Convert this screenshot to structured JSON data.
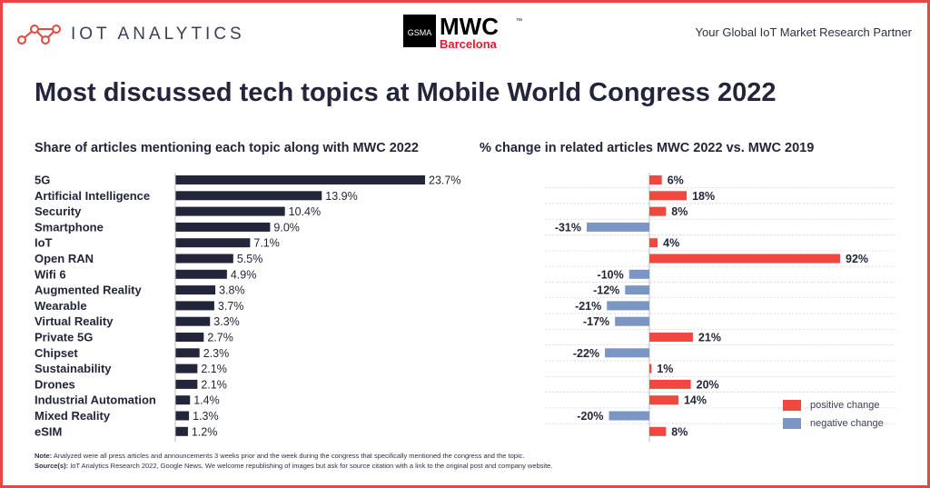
{
  "header": {
    "brand": "IOT ANALYTICS",
    "event_logo": {
      "wordmark": "MWC",
      "org": "GSMA",
      "city": "Barcelona",
      "tm": "™"
    },
    "tagline": "Your Global IoT Market Research Partner"
  },
  "title": "Most discussed tech topics at Mobile World Congress 2022",
  "colors": {
    "frame": "#e8473f",
    "share_bar": "#23263a",
    "positive": "#f0473f",
    "negative": "#7b96c2",
    "text": "#23263a"
  },
  "chart_data": [
    {
      "type": "bar",
      "orientation": "horizontal",
      "title": "Share of articles mentioning each topic along with MWC 2022",
      "categories": [
        "5G",
        "Artificial Intelligence",
        "Security",
        "Smartphone",
        "IoT",
        "Open RAN",
        "Wifi 6",
        "Augmented Reality",
        "Wearable",
        "Virtual Reality",
        "Private 5G",
        "Chipset",
        "Sustainability",
        "Drones",
        "Industrial Automation",
        "Mixed Reality",
        "eSIM"
      ],
      "values": [
        23.7,
        13.9,
        10.4,
        9.0,
        7.1,
        5.5,
        4.9,
        3.8,
        3.7,
        3.3,
        2.7,
        2.3,
        2.1,
        2.1,
        1.4,
        1.3,
        1.2
      ],
      "labels": [
        "23.7%",
        "13.9%",
        "10.4%",
        "9.0%",
        "7.1%",
        "5.5%",
        "4.9%",
        "3.8%",
        "3.7%",
        "3.3%",
        "2.7%",
        "2.3%",
        "2.1%",
        "2.1%",
        "1.4%",
        "1.3%",
        "1.2%"
      ],
      "unit": "%"
    },
    {
      "type": "bar",
      "orientation": "horizontal",
      "title": "% change in related articles MWC 2022 vs. MWC 2019",
      "categories": [
        "5G",
        "Artificial Intelligence",
        "Security",
        "Smartphone",
        "IoT",
        "Open RAN",
        "Wifi 6",
        "Augmented Reality",
        "Wearable",
        "Virtual Reality",
        "Private 5G",
        "Chipset",
        "Sustainability",
        "Drones",
        "Industrial Automation",
        "Mixed Reality",
        "eSIM"
      ],
      "values": [
        6,
        18,
        8,
        -31,
        4,
        92,
        -10,
        -12,
        -21,
        -17,
        21,
        -22,
        1,
        20,
        14,
        -20,
        8
      ],
      "labels": [
        "6%",
        "18%",
        "8%",
        "-31%",
        "4%",
        "92%",
        "-10%",
        "-12%",
        "-21%",
        "-17%",
        "21%",
        "-22%",
        "1%",
        "20%",
        "14%",
        "-20%",
        "8%"
      ],
      "unit": "%",
      "legend": [
        "positive change",
        "negative change"
      ],
      "legend_position": "bottom-right"
    }
  ],
  "notes": {
    "note_label": "Note:",
    "note_text": "Analyzed were all press articles and announcements 3 weeks prior and the week during the congress that specifically mentioned the congress and the topic.",
    "source_label": "Source(s):",
    "source_text": "IoT Analytics Research 2022, Google News. We welcome republishing of images but ask for source citation with a link to the original post and company website."
  }
}
